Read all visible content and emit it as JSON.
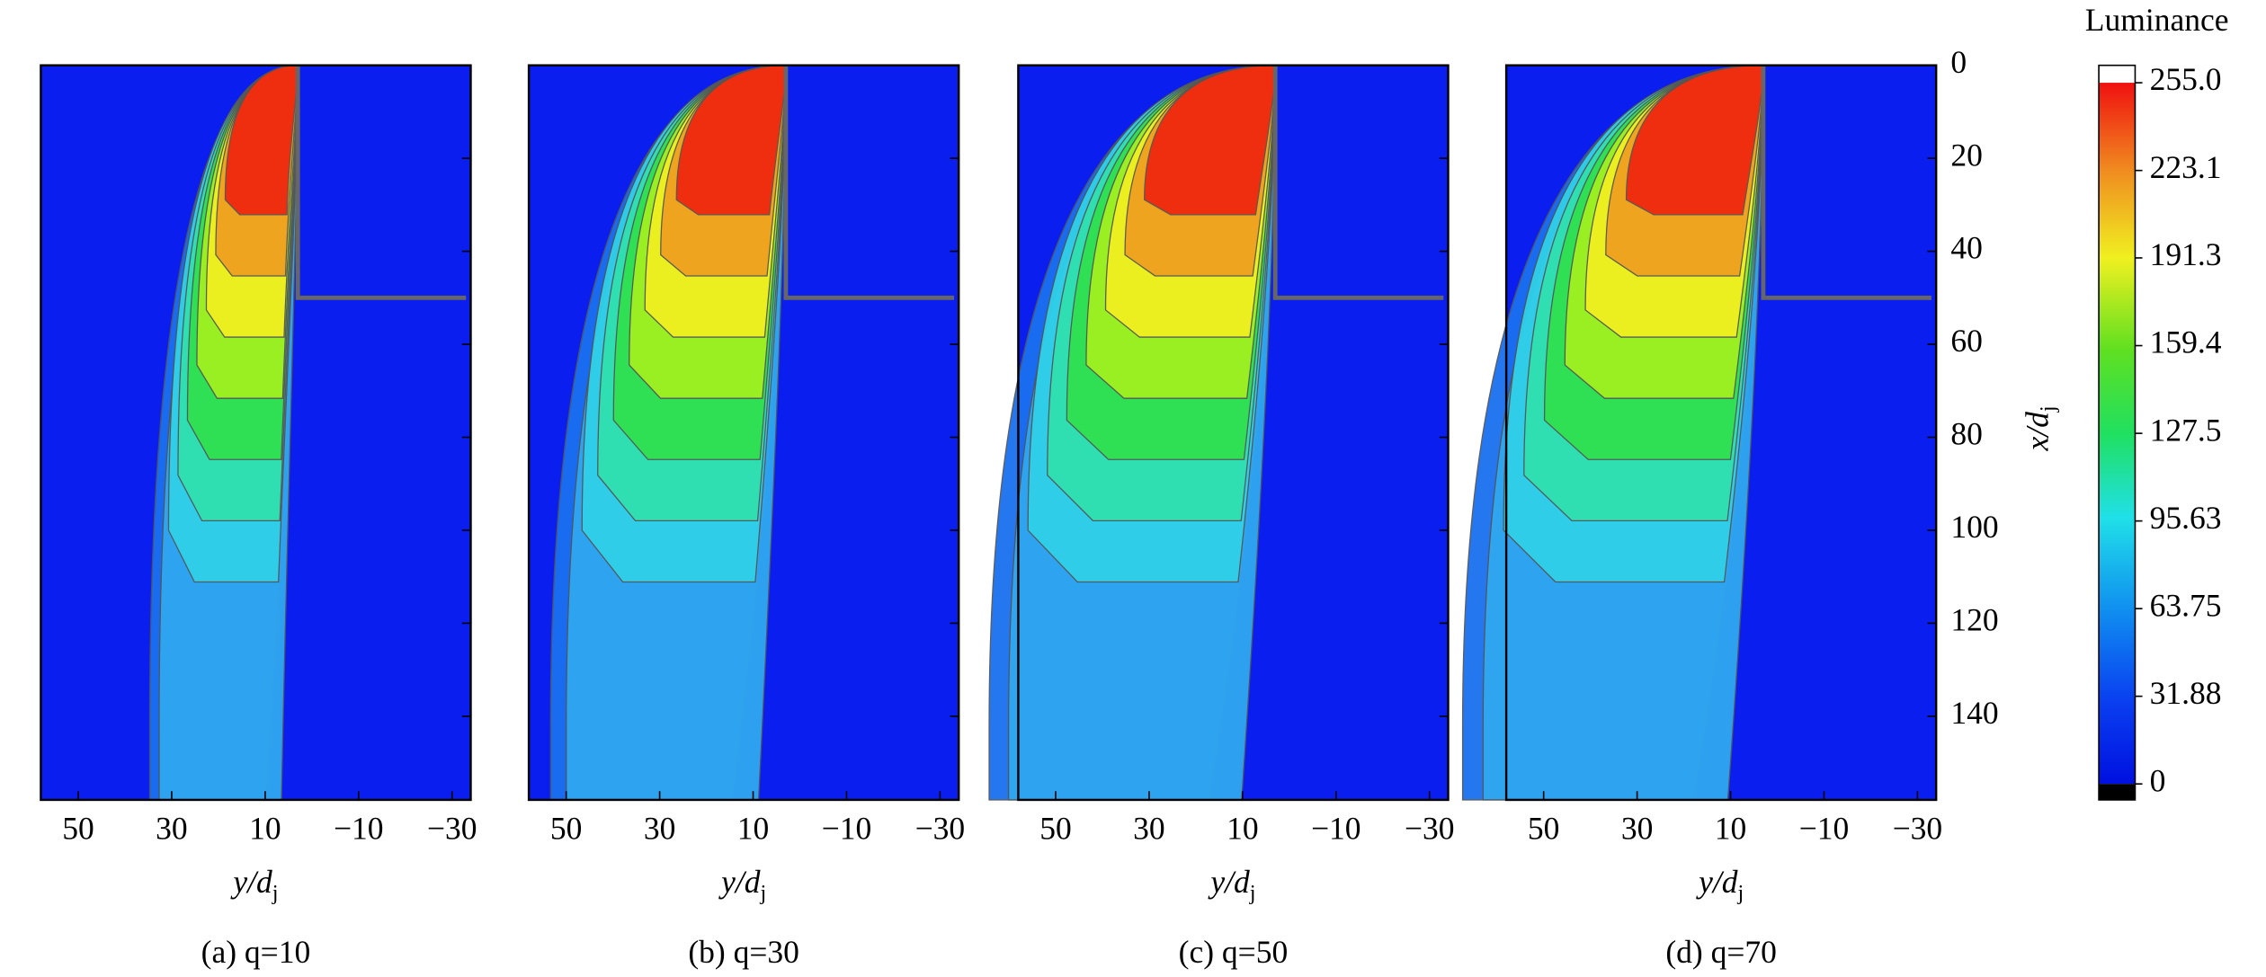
{
  "chart_data": [
    {
      "type": "contour",
      "caption": "(a) q=10",
      "xlabel": "y/d",
      "xlabel_sub": "j",
      "xlim": [
        58,
        -34
      ],
      "xticks": [
        50,
        30,
        10,
        {
          "value": -10,
          "label": "−10"
        },
        {
          "value": -30,
          "label": "−30"
        }
      ]
    },
    {
      "type": "contour",
      "caption": "(b) q=30",
      "xlabel": "y/d",
      "xlabel_sub": "j",
      "xlim": [
        58,
        -34
      ],
      "xticks": [
        50,
        30,
        10,
        {
          "value": -10,
          "label": "−10"
        },
        {
          "value": -30,
          "label": "−30"
        }
      ]
    },
    {
      "type": "contour",
      "caption": "(c) q=50",
      "xlabel": "y/d",
      "xlabel_sub": "j",
      "xlim": [
        58,
        -34
      ],
      "xticks": [
        50,
        30,
        10,
        {
          "value": -10,
          "label": "−10"
        },
        {
          "value": -30,
          "label": "−30"
        }
      ]
    },
    {
      "type": "contour",
      "caption": "(d) q=70",
      "xlabel": "y/d",
      "xlabel_sub": "j",
      "xlim": [
        58,
        -34
      ],
      "xticks": [
        50,
        30,
        10,
        {
          "value": -10,
          "label": "−10"
        },
        {
          "value": -30,
          "label": "−30"
        }
      ],
      "ylabel": "x/d",
      "ylabel_sub": "j",
      "ylim": [
        0,
        158
      ],
      "yticks": [
        0,
        20,
        40,
        60,
        80,
        100,
        120,
        140
      ]
    }
  ],
  "colorbar": {
    "title": "Luminance",
    "lim": [
      0,
      255
    ],
    "ticks": [
      {
        "value": 255,
        "label": "255.0"
      },
      {
        "value": 223.1,
        "label": "223.1"
      },
      {
        "value": 191.3,
        "label": "191.3"
      },
      {
        "value": 159.4,
        "label": "159.4"
      },
      {
        "value": 127.5,
        "label": "127.5"
      },
      {
        "value": 95.63,
        "label": "95.63"
      },
      {
        "value": 63.75,
        "label": "63.75"
      },
      {
        "value": 31.88,
        "label": "31.88"
      },
      0
    ]
  }
}
